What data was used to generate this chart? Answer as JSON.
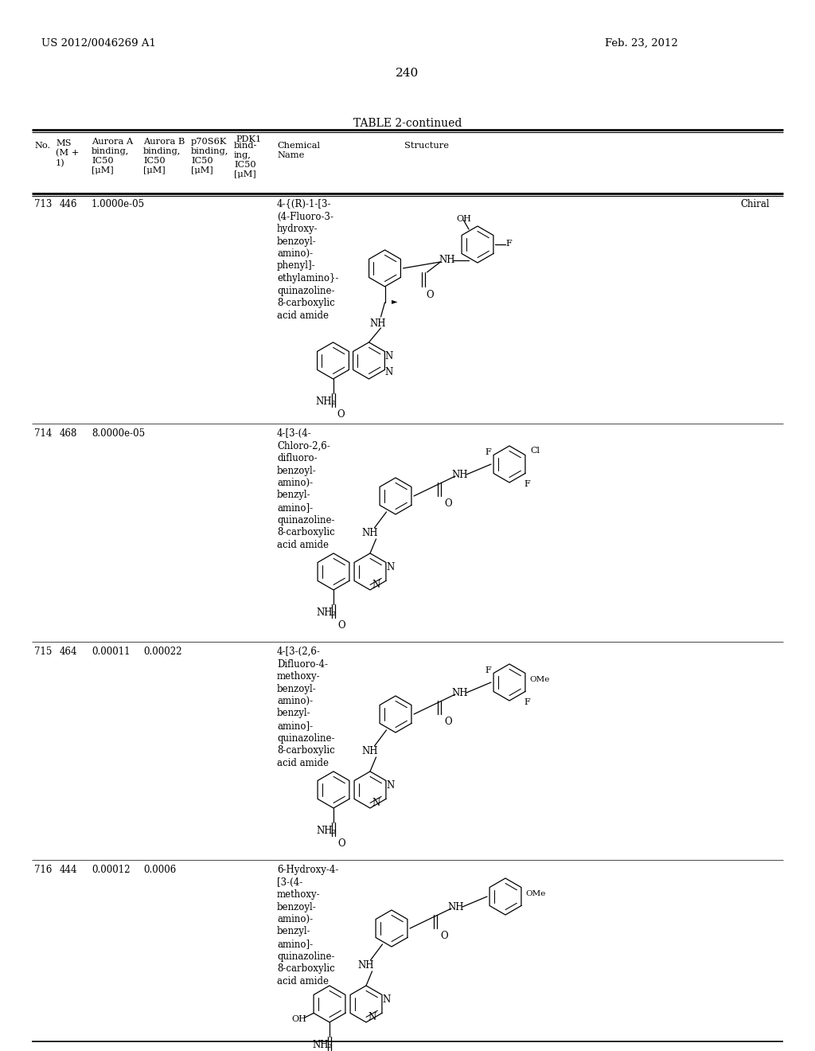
{
  "page_number": "240",
  "patent_number": "US 2012/0046269 A1",
  "patent_date": "Feb. 23, 2012",
  "table_title": "TABLE 2-continued",
  "bg_color": "#ffffff",
  "rows": [
    {
      "no": "713",
      "ms": "446",
      "aurora_a": "1.0000e-05",
      "aurora_b": "",
      "p70s6k": "",
      "pdk1": "",
      "name": "4-{(R)-1-[3-\n(4-Fluoro-3-\nhydroxy-\nbenzoyl-\namino)-\nphenyl]-\nethylamino}-\nquinazoline-\n8-carboxylic\nacid amide",
      "chiral": true
    },
    {
      "no": "714",
      "ms": "468",
      "aurora_a": "8.0000e-05",
      "aurora_b": "",
      "p70s6k": "",
      "pdk1": "",
      "name": "4-[3-(4-\nChloro-2,6-\ndifluoro-\nbenzoyl-\namino)-\nbenzyl-\namino]-\nquinazoline-\n8-carboxylic\nacid amide",
      "chiral": false
    },
    {
      "no": "715",
      "ms": "464",
      "aurora_a": "0.00011",
      "aurora_b": "0.00022",
      "p70s6k": "",
      "pdk1": "",
      "name": "4-[3-(2,6-\nDifluoro-4-\nmethoxy-\nbenzoyl-\namino)-\nbenzyl-\namino]-\nquinazoline-\n8-carboxylic\nacid amide",
      "chiral": false
    },
    {
      "no": "716",
      "ms": "444",
      "aurora_a": "0.00012",
      "aurora_b": "0.0006",
      "p70s6k": "",
      "pdk1": "",
      "name": "6-Hydroxy-4-\n[3-(4-\nmethoxy-\nbenzoyl-\namino)-\nbenzyl-\namino]-\nquinazoline-\n8-carboxylic\nacid amide",
      "chiral": false
    }
  ]
}
